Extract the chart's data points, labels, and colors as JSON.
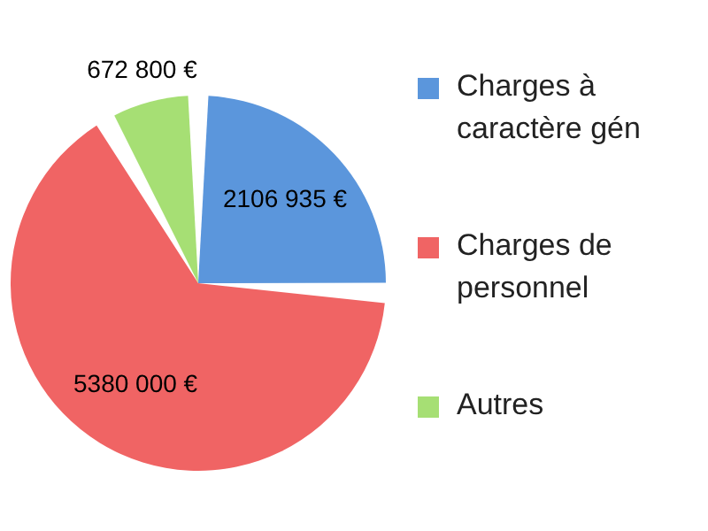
{
  "chart_data": {
    "type": "pie",
    "categories": [
      "Charges à caractère gén",
      "Charges de personnel",
      "Autres"
    ],
    "values": [
      2106935,
      5380000,
      672800
    ],
    "colors": [
      "#5b96dc",
      "#f06464",
      "#a6df74"
    ],
    "value_labels": [
      "2106 935 €",
      "5380 000 €",
      "672 800 €"
    ],
    "legend": "right"
  }
}
